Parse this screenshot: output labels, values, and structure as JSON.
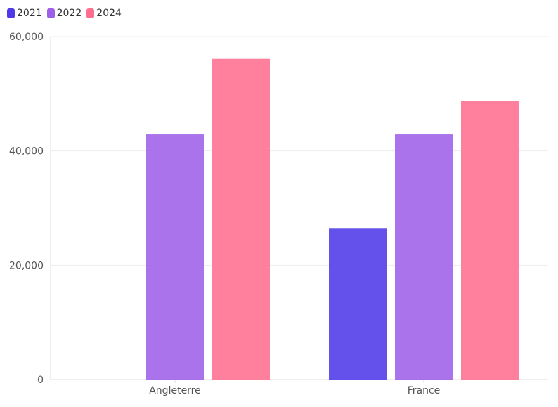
{
  "colors": {
    "series": [
      "#4f38e8",
      "#9e5fe8",
      "#ff6e8f"
    ],
    "grid": "#eeeeee",
    "axis": "#dddddd",
    "text": "#555555"
  },
  "chart_data": {
    "type": "bar",
    "title": "",
    "xlabel": "",
    "ylabel": "",
    "categories": [
      "Angleterre",
      "France"
    ],
    "series": [
      {
        "name": "2021",
        "values": [
          null,
          26400
        ]
      },
      {
        "name": "2022",
        "values": [
          42900,
          42900
        ]
      },
      {
        "name": "2024",
        "values": [
          56100,
          48800
        ]
      }
    ],
    "ylim": [
      0,
      60000
    ],
    "yticks": [
      0,
      20000,
      40000,
      60000
    ],
    "ytick_labels": [
      "0",
      "20,000",
      "40,000",
      "60,000"
    ],
    "grid": true,
    "legend_position": "top-left"
  }
}
